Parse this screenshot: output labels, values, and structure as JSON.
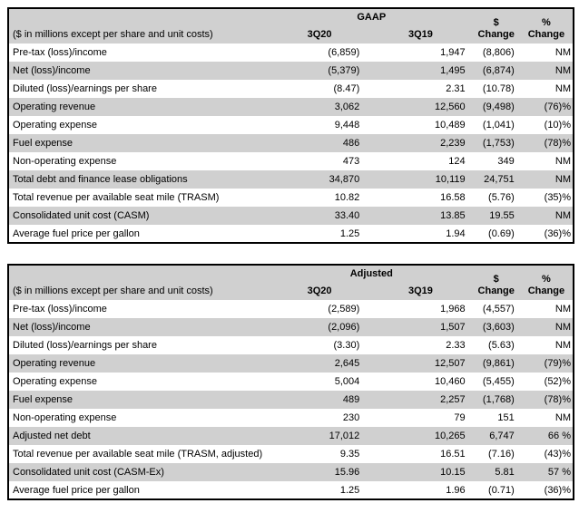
{
  "colors": {
    "header_fill": "#D0D0D0",
    "row_stripe_fill": "#D0D0D0",
    "table_border": "#000000",
    "text": "#000000",
    "page_background": "#FFFFFF"
  },
  "tables": [
    {
      "title": "GAAP",
      "units_note": "($ in millions except per share and unit costs)",
      "period_cols": [
        "3Q20",
        "3Q19"
      ],
      "change_cols": [
        {
          "symbol": "$",
          "label": "Change"
        },
        {
          "symbol": "%",
          "label": "Change"
        }
      ],
      "rows": [
        {
          "label": "Pre-tax (loss)/income",
          "q20": "(6,859)",
          "q19": "1,947",
          "change": "(8,806)",
          "pct": "NM"
        },
        {
          "label": "Net (loss)/income",
          "q20": "(5,379)",
          "q19": "1,495",
          "change": "(6,874)",
          "pct": "NM"
        },
        {
          "label": "Diluted (loss)/earnings per share",
          "q20": "(8.47)",
          "q19": "2.31",
          "change": "(10.78)",
          "pct": "NM"
        },
        {
          "label": "Operating revenue",
          "q20": "3,062",
          "q19": "12,560",
          "change": "(9,498)",
          "pct": "(76)%"
        },
        {
          "label": "Operating expense",
          "q20": "9,448",
          "q19": "10,489",
          "change": "(1,041)",
          "pct": "(10)%"
        },
        {
          "label": "Fuel expense",
          "q20": "486",
          "q19": "2,239",
          "change": "(1,753)",
          "pct": "(78)%"
        },
        {
          "label": "Non-operating expense",
          "q20": "473",
          "q19": "124",
          "change": "349",
          "pct": "NM"
        },
        {
          "label": "Total debt and finance lease obligations",
          "q20": "34,870",
          "q19": "10,119",
          "change": "24,751",
          "pct": "NM"
        },
        {
          "label": "Total revenue per available seat mile (TRASM)",
          "q20": "10.82",
          "q19": "16.58",
          "change": "(5.76)",
          "pct": "(35)%"
        },
        {
          "label": "Consolidated unit cost (CASM)",
          "q20": "33.40",
          "q19": "13.85",
          "change": "19.55",
          "pct": "NM"
        },
        {
          "label": "Average fuel price per gallon",
          "q20": "1.25",
          "q19": "1.94",
          "change": "(0.69)",
          "pct": "(36)%"
        }
      ]
    },
    {
      "title": "Adjusted",
      "units_note": "($ in millions except per share and unit costs)",
      "period_cols": [
        "3Q20",
        "3Q19"
      ],
      "change_cols": [
        {
          "symbol": "$",
          "label": "Change"
        },
        {
          "symbol": "%",
          "label": "Change"
        }
      ],
      "rows": [
        {
          "label": "Pre-tax (loss)/income",
          "q20": "(2,589)",
          "q19": "1,968",
          "change": "(4,557)",
          "pct": "NM"
        },
        {
          "label": "Net (loss)/income",
          "q20": "(2,096)",
          "q19": "1,507",
          "change": "(3,603)",
          "pct": "NM"
        },
        {
          "label": "Diluted (loss)/earnings per share",
          "q20": "(3.30)",
          "q19": "2.33",
          "change": "(5.63)",
          "pct": "NM"
        },
        {
          "label": "Operating revenue",
          "q20": "2,645",
          "q19": "12,507",
          "change": "(9,861)",
          "pct": "(79)%"
        },
        {
          "label": "Operating expense",
          "q20": "5,004",
          "q19": "10,460",
          "change": "(5,455)",
          "pct": "(52)%"
        },
        {
          "label": "Fuel expense",
          "q20": "489",
          "q19": "2,257",
          "change": "(1,768)",
          "pct": "(78)%"
        },
        {
          "label": "Non-operating expense",
          "q20": "230",
          "q19": "79",
          "change": "151",
          "pct": "NM"
        },
        {
          "label": "Adjusted net debt",
          "q20": "17,012",
          "q19": "10,265",
          "change": "6,747",
          "pct": "66 %"
        },
        {
          "label": "Total revenue per available seat mile (TRASM, adjusted)",
          "q20": "9.35",
          "q19": "16.51",
          "change": "(7.16)",
          "pct": "(43)%"
        },
        {
          "label": "Consolidated unit cost (CASM-Ex)",
          "q20": "15.96",
          "q19": "10.15",
          "change": "5.81",
          "pct": "57 %"
        },
        {
          "label": "Average fuel price per gallon",
          "q20": "1.25",
          "q19": "1.96",
          "change": "(0.71)",
          "pct": "(36)%"
        }
      ]
    }
  ]
}
